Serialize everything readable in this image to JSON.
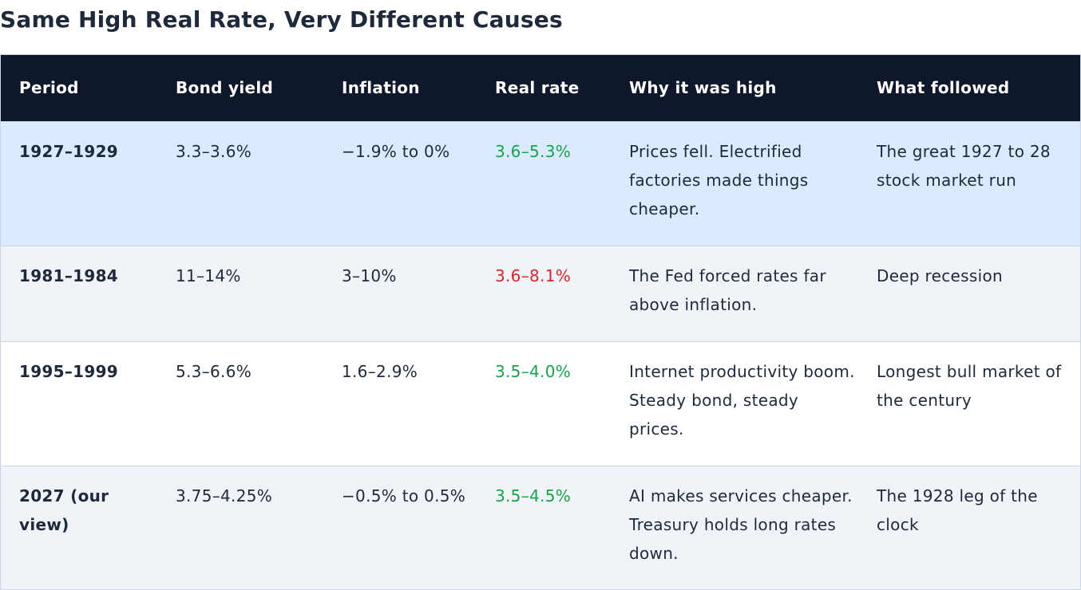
{
  "title": "Same High Real Rate, Very Different Causes",
  "colors": {
    "header_bg": "#0f172a",
    "positive": "#16a34a",
    "negative": "#dc2626",
    "highlight_row": "#dbeafe",
    "alt_row": "#f0f4f9"
  },
  "columns": [
    "Period",
    "Bond yield",
    "Inflation",
    "Real rate",
    "Why it was high",
    "What followed"
  ],
  "rows": [
    {
      "period": "1927–1929",
      "bond_yield": "3.3–3.6%",
      "inflation": "−1.9% to 0%",
      "real_rate": "3.6–5.3%",
      "real_rate_tone": "positive",
      "why": "Prices fell. Electrified factories made things cheaper.",
      "followed": "The great 1927 to 28 stock market run"
    },
    {
      "period": "1981–1984",
      "bond_yield": "11–14%",
      "inflation": "3–10%",
      "real_rate": "3.6–8.1%",
      "real_rate_tone": "negative",
      "why": "The Fed forced rates far above inflation.",
      "followed": "Deep recession"
    },
    {
      "period": "1995–1999",
      "bond_yield": "5.3–6.6%",
      "inflation": "1.6–2.9%",
      "real_rate": "3.5–4.0%",
      "real_rate_tone": "positive",
      "why": "Internet productivity boom. Steady bond, steady prices.",
      "followed": "Longest bull market of the century"
    },
    {
      "period": "2027 (our view)",
      "bond_yield": "3.75–4.25%",
      "inflation": "−0.5% to 0.5%",
      "real_rate": "3.5–4.5%",
      "real_rate_tone": "positive",
      "why": "AI makes services cheaper. Treasury holds long rates down.",
      "followed": "The 1928 leg of the clock"
    }
  ]
}
